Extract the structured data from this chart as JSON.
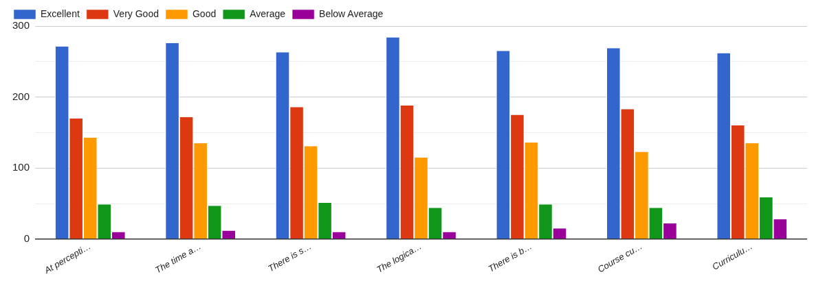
{
  "chart_data": {
    "type": "bar",
    "categories": [
      "At percepti…",
      "The time a…",
      "There is s…",
      "The logica…",
      "There is b…",
      "Course cu…",
      "Curriculu…"
    ],
    "series": [
      {
        "name": "Excellent",
        "color": "#3366cc",
        "values": [
          271,
          276,
          263,
          284,
          265,
          269,
          262
        ]
      },
      {
        "name": "Very Good",
        "color": "#dc3912",
        "values": [
          170,
          172,
          186,
          188,
          175,
          183,
          160
        ]
      },
      {
        "name": "Good",
        "color": "#ff9900",
        "values": [
          143,
          135,
          131,
          115,
          136,
          123,
          135
        ]
      },
      {
        "name": "Average",
        "color": "#109618",
        "values": [
          49,
          47,
          51,
          44,
          49,
          44,
          59
        ]
      },
      {
        "name": "Below Average",
        "color": "#990099",
        "values": [
          10,
          12,
          10,
          10,
          15,
          22,
          28
        ]
      }
    ],
    "ylim": [
      0,
      300
    ],
    "yticks": [
      0,
      {
        "value": 50,
        "label": null
      },
      100,
      {
        "value": 150,
        "label": null
      },
      200,
      {
        "value": 250,
        "label": null
      },
      300
    ],
    "grid": "y",
    "legend": "top left"
  }
}
